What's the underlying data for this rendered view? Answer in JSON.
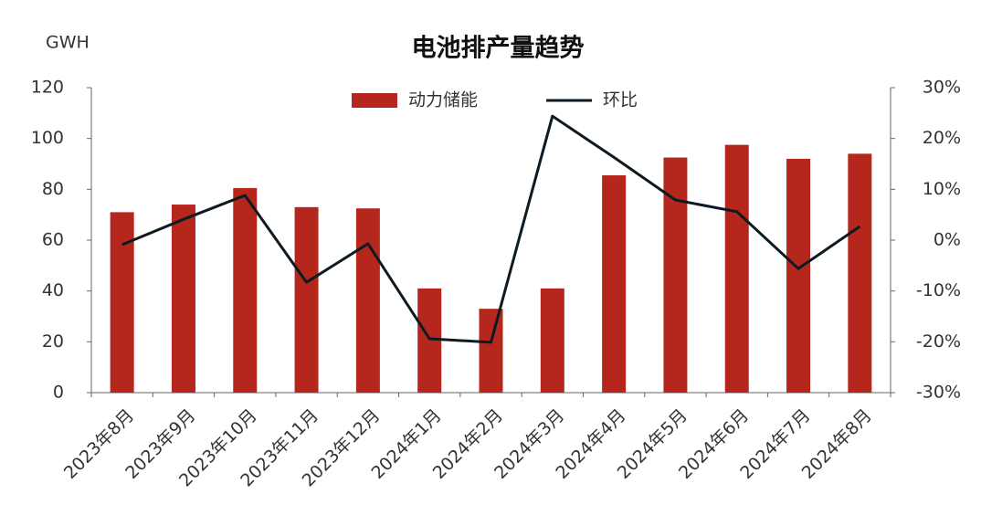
{
  "chart_data": {
    "type": "bar-line",
    "title": "电池排产量趋势",
    "y_label": "GWH",
    "categories": [
      "2023年8月",
      "2023年9月",
      "2023年10月",
      "2023年11月",
      "2023年12月",
      "2024年1月",
      "2024年2月",
      "2024年3月",
      "2024年4月",
      "2024年5月",
      "2024年6月",
      "2024年7月",
      "2024年8月"
    ],
    "series": [
      {
        "name": "动力储能",
        "type": "bar",
        "color": "#b5271c",
        "values": [
          71,
          74,
          80.5,
          73,
          72.5,
          41,
          33,
          41,
          85.5,
          92.5,
          97.5,
          92,
          94
        ]
      },
      {
        "name": "环比",
        "type": "line",
        "axis": "y2",
        "color": "#0d1a22",
        "values": [
          -0.9,
          4.1,
          8.8,
          -8.3,
          -0.7,
          -19.4,
          -20.1,
          24.4,
          16.3,
          7.9,
          5.6,
          -5.6,
          2.7
        ]
      }
    ],
    "ylim": [
      0,
      120
    ],
    "yticks": [
      0,
      20,
      40,
      60,
      80,
      100,
      120
    ],
    "y2lim": [
      -30,
      30
    ],
    "y2ticks": [
      {
        "value": -30,
        "label": "-30%"
      },
      {
        "value": -20,
        "label": "-20%"
      },
      {
        "value": -10,
        "label": "-10%"
      },
      {
        "value": 0,
        "label": "0%"
      },
      {
        "value": 10,
        "label": "10%"
      },
      {
        "value": 20,
        "label": "20%"
      },
      {
        "value": 30,
        "label": "30%"
      }
    ],
    "legend": "top"
  }
}
